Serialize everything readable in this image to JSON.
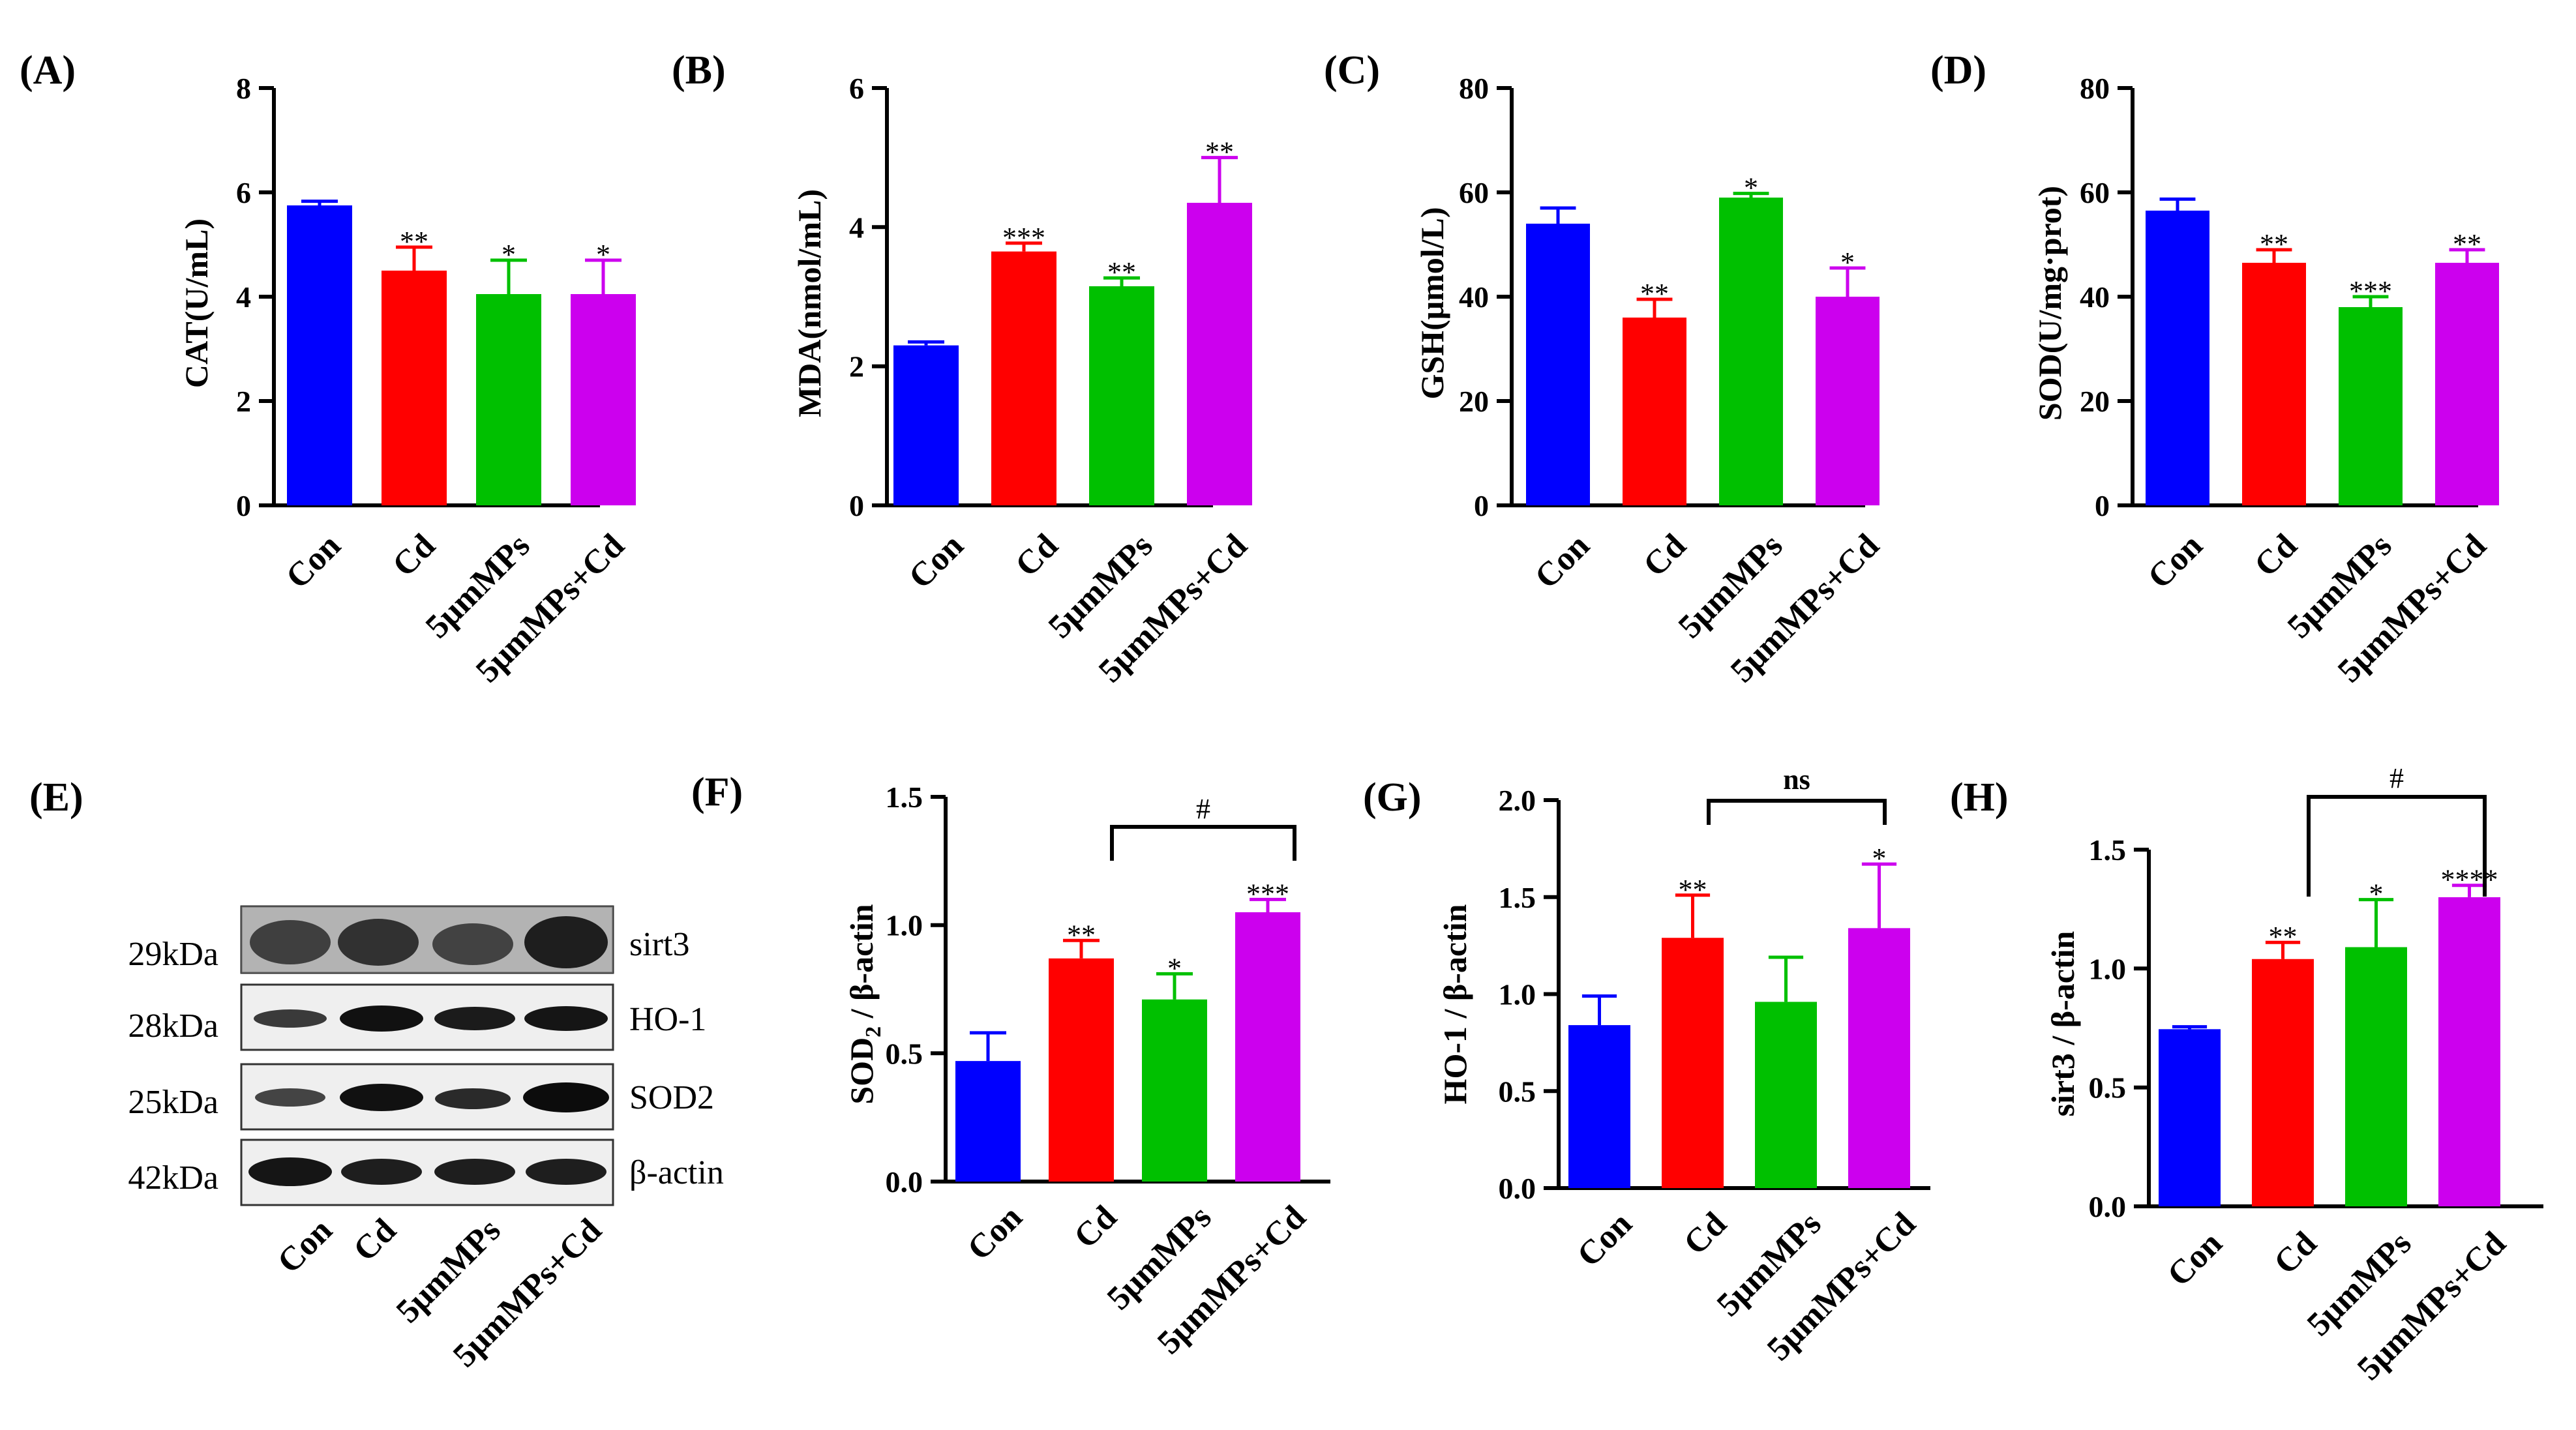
{
  "colors": {
    "Con": "#0000ff",
    "Cd": "#ff0000",
    "5μmMPs": "#00c000",
    "5μmMPs+Cd": "#cc00ee"
  },
  "chart_data": [
    {
      "panel": "(A)",
      "type": "bar",
      "categories": [
        "Con",
        "Cd",
        "5μmMPs",
        "5μmMPs+Cd"
      ],
      "values": [
        5.75,
        4.5,
        4.05,
        4.05
      ],
      "errors": [
        0.08,
        0.45,
        0.65,
        0.65
      ],
      "significance": [
        "",
        "**",
        "*",
        "*"
      ],
      "ylabel": "CAT(U/mL)",
      "ylim": [
        0,
        8
      ],
      "yticks": [
        0,
        2,
        4,
        6,
        8
      ],
      "ytick_labels": [
        "0",
        "2",
        "4",
        "6",
        "8"
      ]
    },
    {
      "panel": "(B)",
      "type": "bar",
      "categories": [
        "Con",
        "Cd",
        "5μmMPs",
        "5μmMPs+Cd"
      ],
      "values": [
        2.3,
        3.65,
        3.15,
        4.35
      ],
      "errors": [
        0.05,
        0.12,
        0.12,
        0.65
      ],
      "significance": [
        "",
        "***",
        "**",
        "**"
      ],
      "ylabel": "MDA(nmol/mL)",
      "ylim": [
        0,
        6
      ],
      "yticks": [
        0,
        2,
        4,
        6
      ],
      "ytick_labels": [
        "0",
        "2",
        "4",
        "6"
      ]
    },
    {
      "panel": "(C)",
      "type": "bar",
      "categories": [
        "Con",
        "Cd",
        "5μmMPs",
        "5μmMPs+Cd"
      ],
      "values": [
        54,
        36,
        59,
        40
      ],
      "errors": [
        3,
        3.5,
        0.8,
        5.5
      ],
      "significance": [
        "",
        "**",
        "*",
        "*"
      ],
      "ylabel": "GSH(μmol/L)",
      "ylim": [
        0,
        80
      ],
      "yticks": [
        0,
        20,
        40,
        60,
        80
      ],
      "ytick_labels": [
        "0",
        "20",
        "40",
        "60",
        "80"
      ]
    },
    {
      "panel": "(D)",
      "type": "bar",
      "categories": [
        "Con",
        "Cd",
        "5μmMPs",
        "5μmMPs+Cd"
      ],
      "values": [
        56.5,
        46.5,
        38,
        46.5
      ],
      "errors": [
        2.2,
        2.5,
        2,
        2.5
      ],
      "significance": [
        "",
        "**",
        "***",
        "**"
      ],
      "ylabel": "SOD(U/mg·prot)",
      "ylim": [
        0,
        80
      ],
      "yticks": [
        0,
        20,
        40,
        60,
        80
      ],
      "ytick_labels": [
        "0",
        "20",
        "40",
        "60",
        "80"
      ]
    },
    {
      "panel": "(F)",
      "type": "bar",
      "categories": [
        "Con",
        "Cd",
        "5μmMPs",
        "5μmMPs+Cd"
      ],
      "values": [
        0.47,
        0.87,
        0.71,
        1.05
      ],
      "errors": [
        0.11,
        0.07,
        0.1,
        0.05
      ],
      "significance": [
        "",
        "**",
        "*",
        "***"
      ],
      "ylabel_main": "SOD",
      "ylabel_sub": "2",
      "ylabel_rest": " / β-actin",
      "ylim": [
        0,
        1.5
      ],
      "yticks": [
        0,
        0.5,
        1.0,
        1.5
      ],
      "ytick_labels": [
        "0.0",
        "0.5",
        "1.0",
        "1.5"
      ],
      "bracket": {
        "from": 1,
        "to": 3,
        "label": "#"
      }
    },
    {
      "panel": "(G)",
      "type": "bar",
      "categories": [
        "Con",
        "Cd",
        "5μmMPs",
        "5μmMPs+Cd"
      ],
      "values": [
        0.84,
        1.29,
        0.96,
        1.34
      ],
      "errors": [
        0.15,
        0.22,
        0.23,
        0.33
      ],
      "significance": [
        "",
        "**",
        "",
        "*"
      ],
      "ylabel": "HO-1 / β-actin",
      "ylim": [
        0,
        2.0
      ],
      "yticks": [
        0,
        0.5,
        1.0,
        1.5,
        2.0
      ],
      "ytick_labels": [
        "0.0",
        "0.5",
        "1.0",
        "1.5",
        "2.0"
      ],
      "bracket": {
        "from": 1,
        "to": 3,
        "label": "ns"
      }
    },
    {
      "panel": "(H)",
      "type": "bar",
      "categories": [
        "Con",
        "Cd",
        "5μmMPs",
        "5μmMPs+Cd"
      ],
      "values": [
        0.745,
        1.04,
        1.09,
        1.3
      ],
      "errors": [
        0.01,
        0.07,
        0.2,
        0.05
      ],
      "significance": [
        "",
        "**",
        "*",
        "****"
      ],
      "ylabel": "sirt3 / β-actin",
      "ylim": [
        0,
        1.5
      ],
      "yticks": [
        0,
        0.5,
        1.0,
        1.5
      ],
      "ytick_labels": [
        "0.0",
        "0.5",
        "1.0",
        "1.5"
      ],
      "bracket": {
        "from": 1,
        "to": 3,
        "label": "#"
      }
    }
  ],
  "western_blot": {
    "panel": "(E)",
    "rows": [
      {
        "kda": "29kDa",
        "protein": "sirt3"
      },
      {
        "kda": "28kDa",
        "protein": "HO-1"
      },
      {
        "kda": "25kDa",
        "protein": "SOD2"
      },
      {
        "kda": "42kDa",
        "protein": "β-actin"
      }
    ],
    "lanes": [
      "Con",
      "Cd",
      "5μmMPs",
      "5μmMPs+Cd"
    ]
  }
}
